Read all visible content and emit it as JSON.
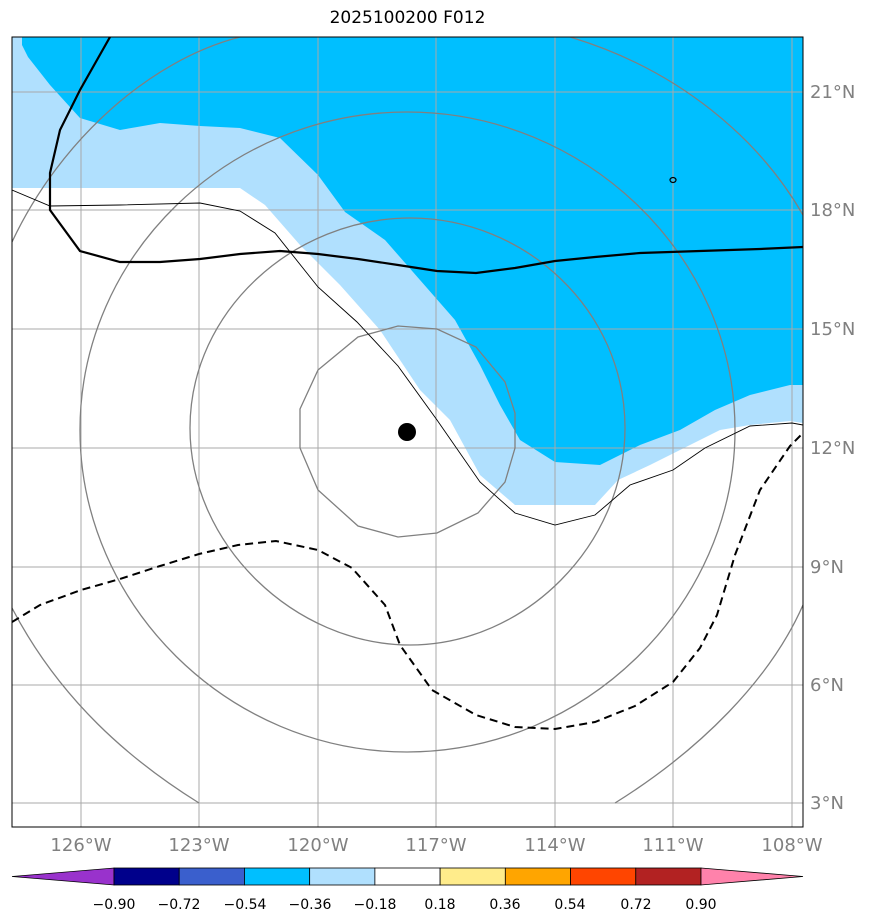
{
  "title": "2025100200 F012",
  "latitude_labels": [
    "3°N",
    "6°N",
    "9°N",
    "12°N",
    "15°N",
    "18°N",
    "21°N"
  ],
  "longitude_labels": [
    "126°W",
    "123°W",
    "120°W",
    "117°W",
    "114°W",
    "111°W",
    "108°W"
  ],
  "colorbar": {
    "colors": [
      "#9932cc",
      "#00008b",
      "#3a5fcd",
      "#00bfff",
      "#b0e0fe",
      "#ffffff",
      "#ffec8b",
      "#ffa500",
      "#ff4500",
      "#b22222",
      "#ff82ab"
    ],
    "labels": [
      "−0.90",
      "−0.72",
      "−0.54",
      "−0.36",
      "−0.18",
      "0.18",
      "0.36",
      "0.54",
      "0.72",
      "0.90"
    ]
  },
  "storm_center": {
    "lat": 12.4,
    "lon": -118.2
  }
}
